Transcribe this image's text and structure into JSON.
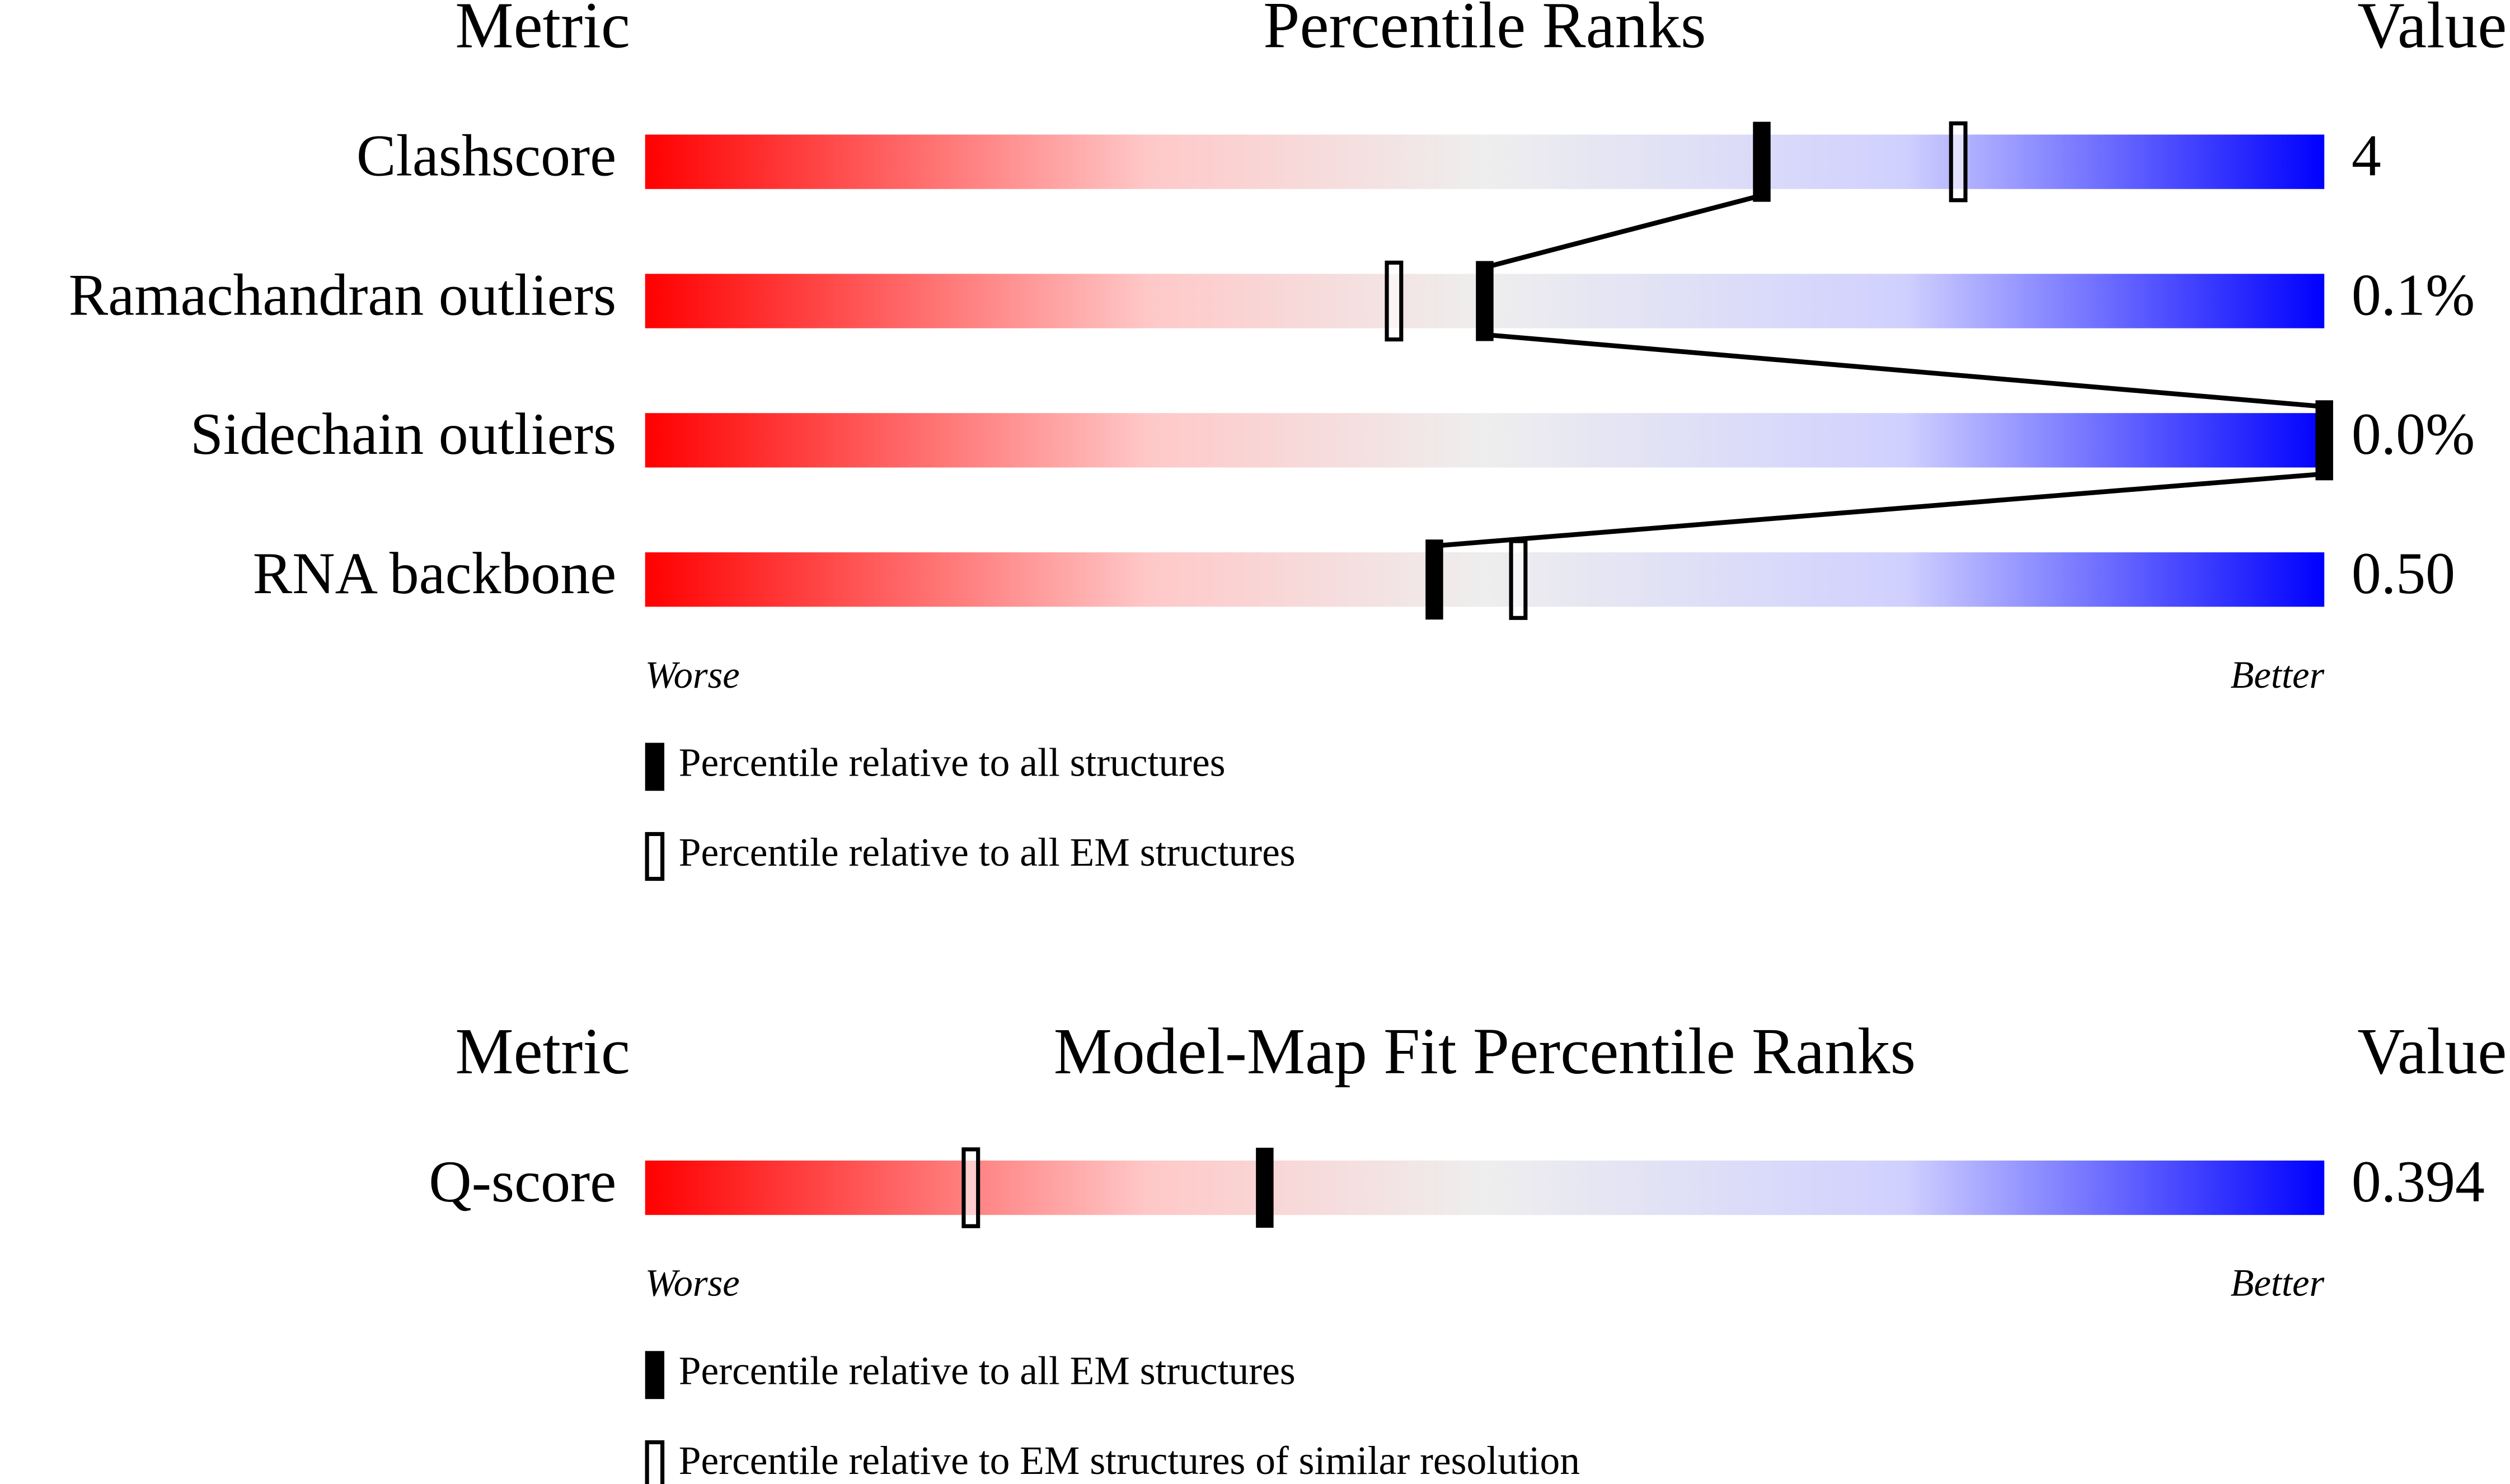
{
  "panels": [
    {
      "headers": {
        "metric": "Metric",
        "title": "Percentile Ranks",
        "value": "Value"
      },
      "xlim": [
        0,
        100
      ],
      "rows": [
        {
          "label": "Clashscore",
          "value": "4",
          "filled": 66.5,
          "open": 78.2
        },
        {
          "label": "Ramachandran outliers",
          "value": "0.1%",
          "filled": 50,
          "open": 44.6
        },
        {
          "label": "Sidechain outliers",
          "value": "0.0%",
          "filled": 100,
          "open": null
        },
        {
          "label": "RNA backbone",
          "value": "0.50",
          "filled": 47,
          "open": 52
        }
      ],
      "scale": {
        "left": "Worse",
        "right": "Better"
      },
      "legend": {
        "filled": "Percentile relative to all structures",
        "open": "Percentile relative to all EM structures"
      }
    },
    {
      "headers": {
        "metric": "Metric",
        "title": "Model-Map Fit Percentile Ranks",
        "value": "Value"
      },
      "xlim": [
        0,
        100
      ],
      "rows": [
        {
          "label": "Q-score",
          "value": "0.394",
          "filled": 36.9,
          "open": 19.4
        }
      ],
      "scale": {
        "left": "Worse",
        "right": "Better"
      },
      "legend": {
        "filled": "Percentile relative to all EM structures",
        "open": "Percentile relative to EM structures of similar resolution"
      }
    }
  ]
}
